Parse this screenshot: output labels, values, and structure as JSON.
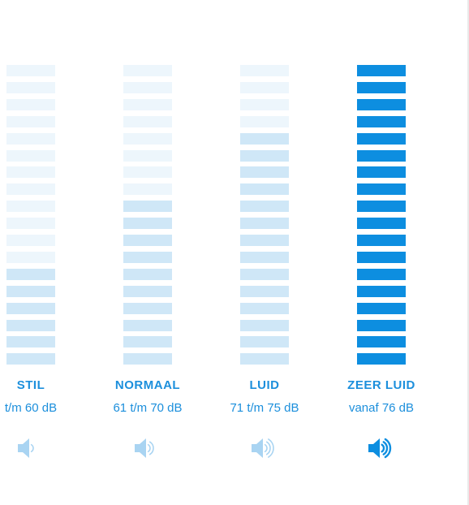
{
  "levels": [
    {
      "label": "STIL",
      "range": "t/m 60 dB",
      "active_segments": 6,
      "total_segments": 18,
      "icon": "speaker-low-icon",
      "waves": 1,
      "emphasized": false
    },
    {
      "label": "NORMAAL",
      "range": "61 t/m 70 dB",
      "active_segments": 10,
      "total_segments": 18,
      "icon": "speaker-medium-icon",
      "waves": 2,
      "emphasized": false
    },
    {
      "label": "LUID",
      "range": "71 t/m 75 dB",
      "active_segments": 14,
      "total_segments": 18,
      "icon": "speaker-high-icon",
      "waves": 3,
      "emphasized": false
    },
    {
      "label": "ZEER LUID",
      "range": "vanaf 76 dB",
      "active_segments": 18,
      "total_segments": 18,
      "icon": "speaker-max-icon",
      "waves": 3,
      "emphasized": true
    }
  ],
  "colors": {
    "accent": "#1c8fdc",
    "bar_strong": "#0d8ee0",
    "bar_active": "#cfe7f7",
    "bar_inactive": "#edf6fc",
    "icon_faded": "#a9d4f2",
    "icon_strong": "#0d8ee0"
  }
}
